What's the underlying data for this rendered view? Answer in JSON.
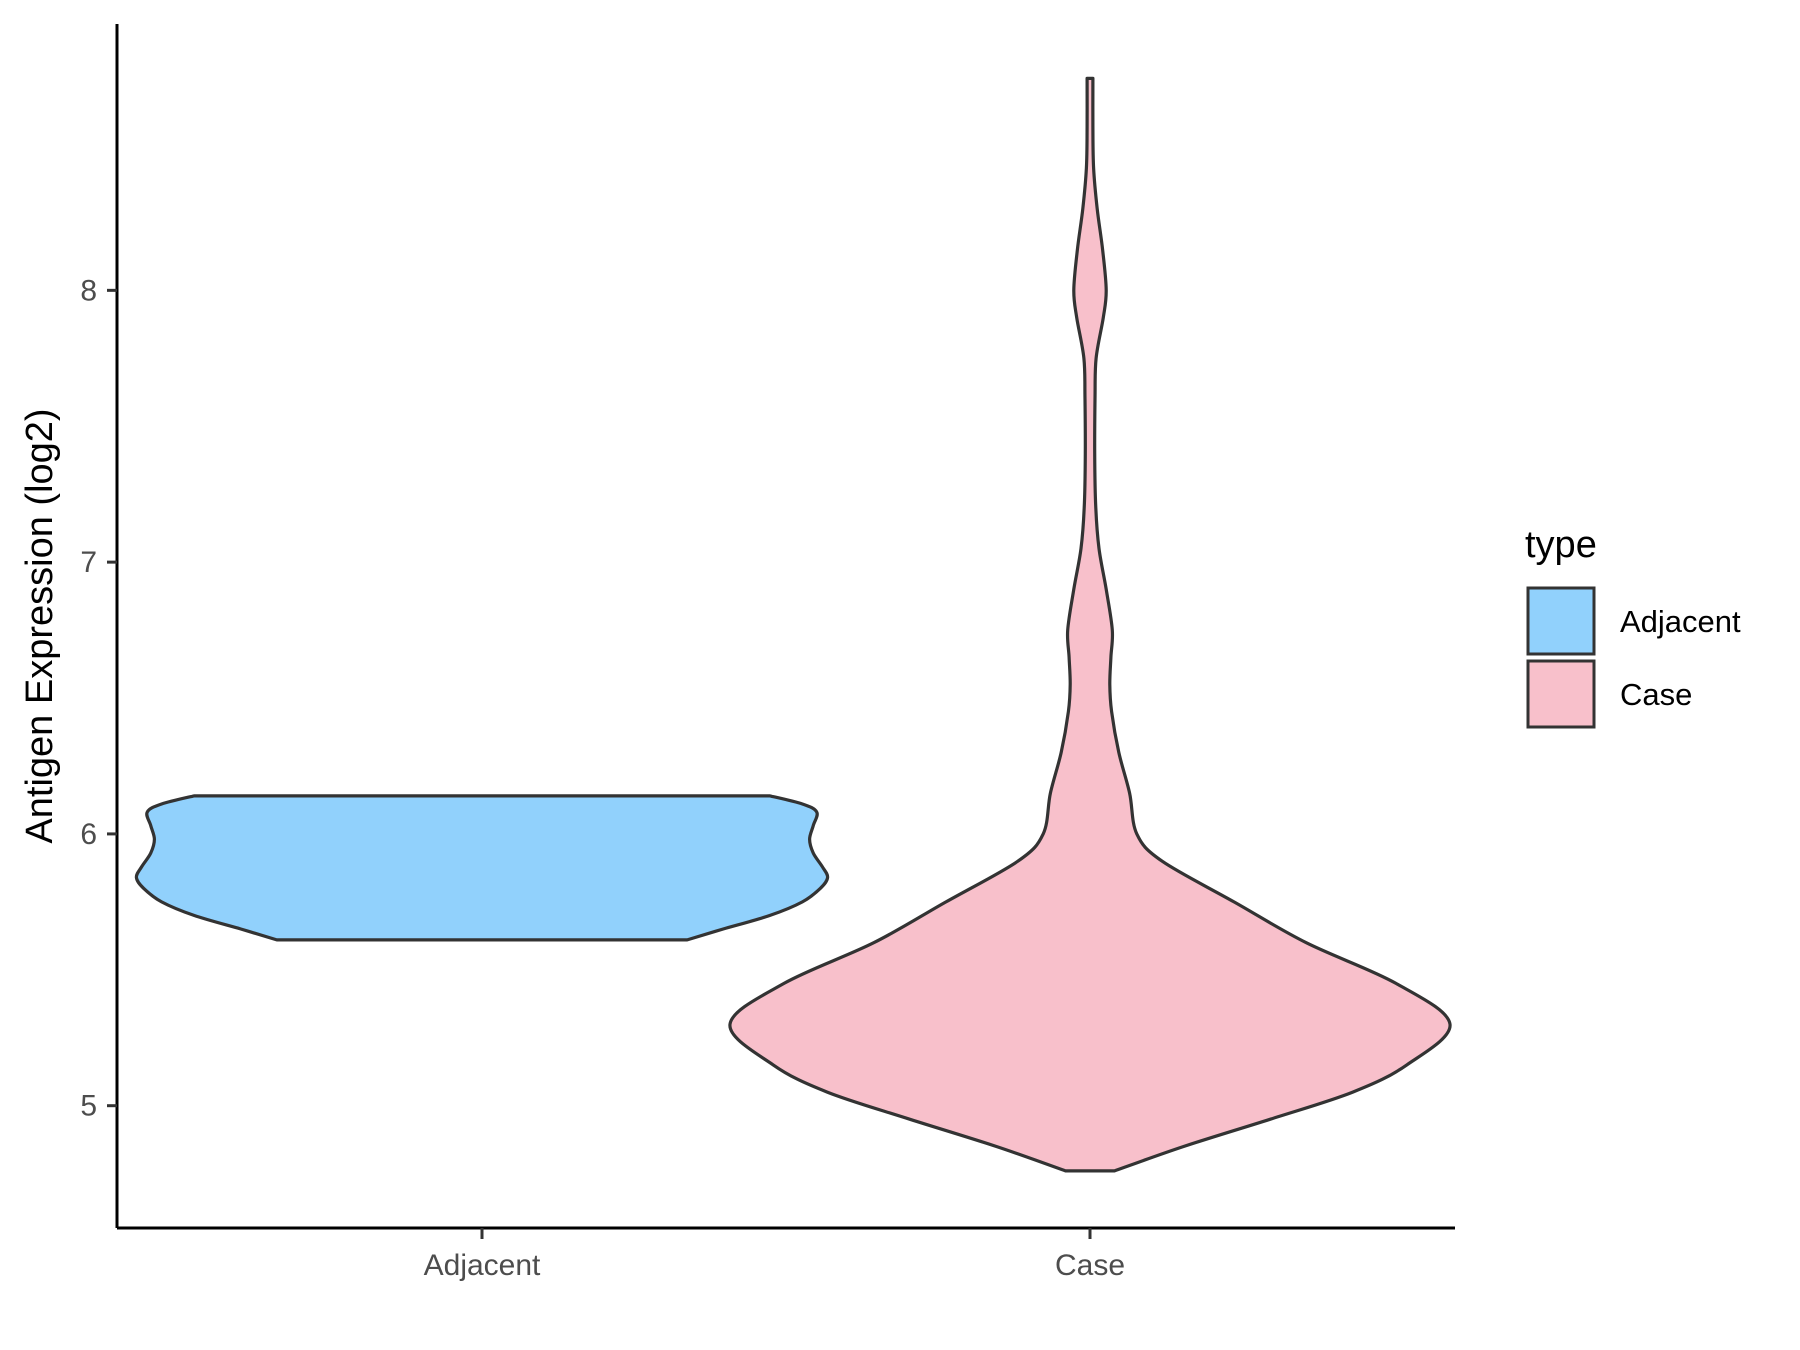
{
  "chart_data": {
    "type": "violin",
    "title": "",
    "xlabel": "",
    "ylabel": "Antigen Expression (log2)",
    "ylim": [
      4.55,
      8.98
    ],
    "yticks": [
      5,
      6,
      7,
      8
    ],
    "grid": false,
    "categories": [
      "Adjacent",
      "Case"
    ],
    "legend": {
      "title": "type",
      "position": "right",
      "entries": [
        {
          "label": "Adjacent",
          "color": "#91D1FC"
        },
        {
          "label": "Case",
          "color": "#F8C0CB"
        }
      ]
    },
    "series": [
      {
        "name": "Adjacent",
        "color": "#91D1FC",
        "min": 5.61,
        "max": 6.14,
        "density": [
          [
            5.61,
            0.57
          ],
          [
            5.65,
            0.67
          ],
          [
            5.7,
            0.8
          ],
          [
            5.75,
            0.89
          ],
          [
            5.8,
            0.94
          ],
          [
            5.84,
            0.96
          ],
          [
            5.88,
            0.945
          ],
          [
            5.93,
            0.92
          ],
          [
            5.98,
            0.91
          ],
          [
            6.03,
            0.92
          ],
          [
            6.08,
            0.93
          ],
          [
            6.11,
            0.89
          ],
          [
            6.14,
            0.8
          ]
        ]
      },
      {
        "name": "Case",
        "color": "#F8C0CB",
        "min": 4.76,
        "max": 8.78,
        "density": [
          [
            4.76,
            0.068
          ],
          [
            4.85,
            0.26
          ],
          [
            4.95,
            0.5
          ],
          [
            5.05,
            0.73
          ],
          [
            5.15,
            0.88
          ],
          [
            5.3,
            1.0
          ],
          [
            5.45,
            0.85
          ],
          [
            5.6,
            0.6
          ],
          [
            5.75,
            0.4
          ],
          [
            5.9,
            0.2
          ],
          [
            6.0,
            0.13
          ],
          [
            6.15,
            0.11
          ],
          [
            6.3,
            0.08
          ],
          [
            6.45,
            0.06
          ],
          [
            6.55,
            0.055
          ],
          [
            6.65,
            0.058
          ],
          [
            6.75,
            0.062
          ],
          [
            6.9,
            0.045
          ],
          [
            7.05,
            0.025
          ],
          [
            7.2,
            0.016
          ],
          [
            7.4,
            0.013
          ],
          [
            7.6,
            0.014
          ],
          [
            7.75,
            0.017
          ],
          [
            7.9,
            0.037
          ],
          [
            8.0,
            0.045
          ],
          [
            8.15,
            0.035
          ],
          [
            8.3,
            0.02
          ],
          [
            8.45,
            0.01
          ],
          [
            8.6,
            0.008
          ],
          [
            8.78,
            0.008
          ]
        ]
      }
    ]
  }
}
